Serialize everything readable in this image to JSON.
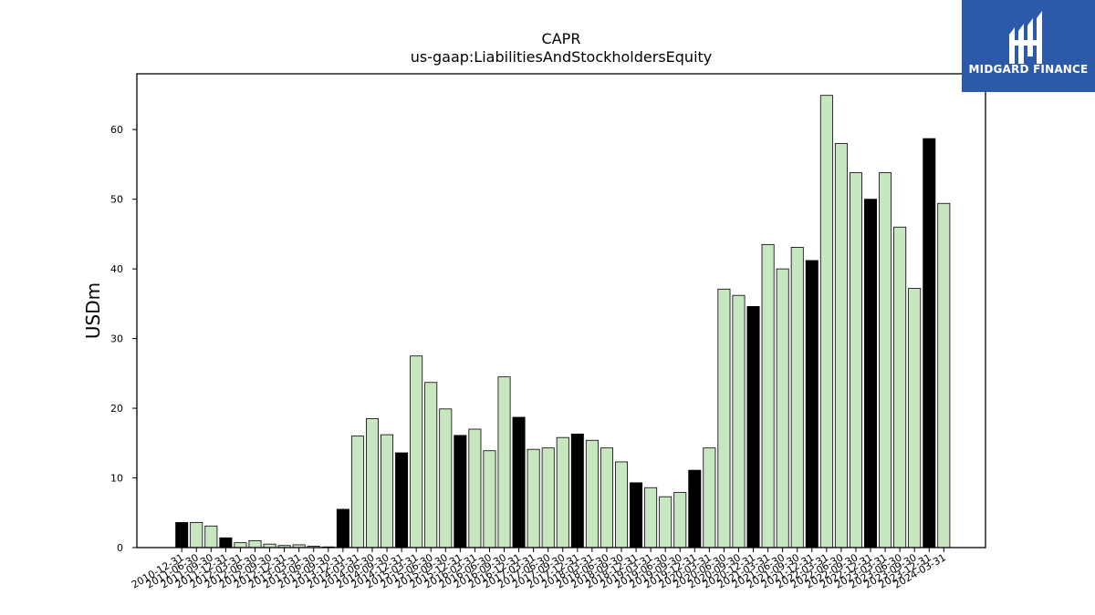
{
  "brand": {
    "name": "MIDGARD FINANCE",
    "background": "#2d5aa8"
  },
  "chart_data": {
    "type": "bar",
    "title": "CAPR",
    "subtitle": "us-gaap:LiabilitiesAndStockholdersEquity",
    "ylabel": "USDm",
    "xlabel": "",
    "ylim": [
      0,
      68
    ],
    "yticks": [
      0,
      10,
      20,
      30,
      40,
      50,
      60
    ],
    "colors": {
      "annual": "#000000",
      "quarterly": "#c8e6c0",
      "edge": "#000000"
    },
    "categories": [
      "2010-12-31",
      "2011-06-30",
      "2011-09-30",
      "2011-12-31",
      "2012-03-31",
      "2012-06-30",
      "2012-09-30",
      "2012-12-31",
      "2013-03-31",
      "2013-06-30",
      "2013-09-30",
      "2013-12-31",
      "2014-03-31",
      "2014-06-30",
      "2014-09-30",
      "2014-12-31",
      "2015-03-31",
      "2015-06-30",
      "2015-09-30",
      "2015-12-31",
      "2016-03-31",
      "2016-06-30",
      "2016-09-30",
      "2016-12-31",
      "2017-03-31",
      "2017-06-30",
      "2017-09-30",
      "2017-12-31",
      "2018-03-31",
      "2018-06-30",
      "2018-09-30",
      "2018-12-31",
      "2019-03-31",
      "2019-06-30",
      "2019-09-30",
      "2019-12-31",
      "2020-03-31",
      "2020-06-30",
      "2020-09-30",
      "2020-12-31",
      "2021-03-31",
      "2021-06-30",
      "2021-09-30",
      "2021-12-31",
      "2022-03-31",
      "2022-06-30",
      "2022-09-30",
      "2022-12-31",
      "2023-03-31",
      "2023-06-30",
      "2023-09-30",
      "2023-12-31",
      "2024-03-31"
    ],
    "values": [
      3.6,
      3.6,
      3.1,
      1.4,
      0.7,
      1.0,
      0.5,
      0.3,
      0.4,
      0.2,
      0.1,
      5.5,
      16.0,
      18.5,
      16.2,
      13.6,
      27.5,
      23.7,
      19.9,
      16.1,
      17.0,
      13.9,
      24.5,
      18.7,
      14.1,
      14.3,
      15.8,
      16.3,
      15.4,
      14.3,
      12.3,
      9.3,
      8.6,
      7.3,
      7.9,
      11.1,
      14.3,
      37.1,
      36.2,
      34.6,
      43.5,
      40.0,
      43.1,
      41.2,
      64.9,
      58.0,
      53.8,
      50.0,
      53.8,
      46.0,
      37.2,
      58.7,
      49.4
    ],
    "annual": [
      true,
      false,
      false,
      true,
      false,
      false,
      false,
      false,
      false,
      false,
      false,
      true,
      false,
      false,
      false,
      true,
      false,
      false,
      false,
      true,
      false,
      false,
      false,
      true,
      false,
      false,
      false,
      true,
      false,
      false,
      false,
      true,
      false,
      false,
      false,
      true,
      false,
      false,
      false,
      true,
      false,
      false,
      false,
      true,
      false,
      false,
      false,
      true,
      false,
      false,
      false,
      true,
      false
    ],
    "grid": false,
    "legend": "none"
  }
}
